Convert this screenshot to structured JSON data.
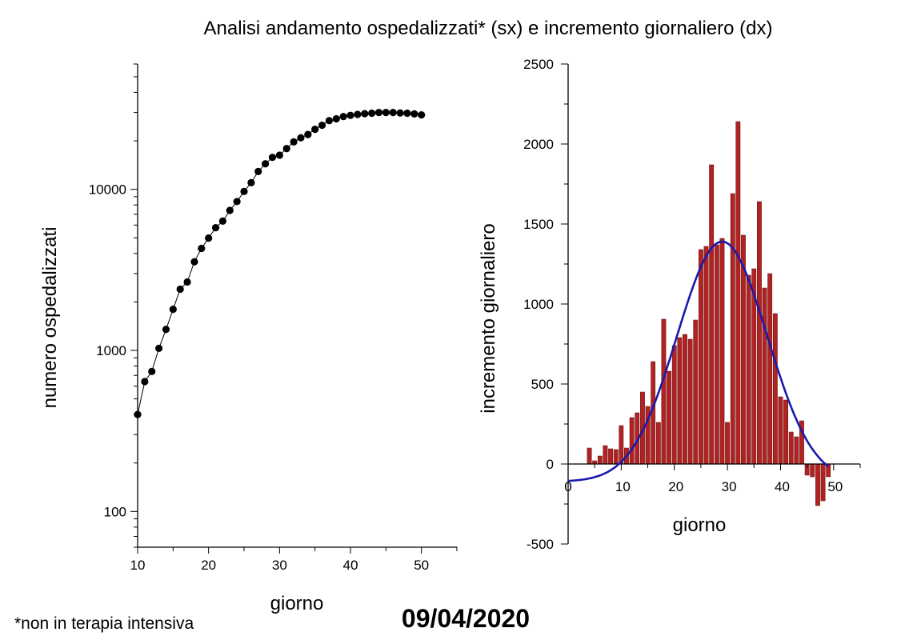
{
  "title": "Analisi andamento ospedalizzati* (sx) e incremento giornaliero (dx)",
  "footnote": "*non in terapia intensiva",
  "date": "09/04/2020",
  "colors": {
    "points": "#000000",
    "bars": "#b22222",
    "bar_outline": "#5a0d0d",
    "fit": "#1a1aaa"
  },
  "chart_data": [
    {
      "type": "scatter",
      "xlabel": "giorno",
      "ylabel": "numero ospedalizzati",
      "y_scale": "log",
      "xlim": [
        10,
        55
      ],
      "ylim": [
        60,
        60000
      ],
      "xticks": [
        10,
        20,
        30,
        40,
        50
      ],
      "xtick_labels": [
        "10",
        "20",
        "30",
        "40",
        "50"
      ],
      "yticks": [
        100,
        1000,
        10000
      ],
      "ytick_labels": [
        "100",
        "1000",
        "10000"
      ],
      "grid": false,
      "connected": true,
      "x": [
        10,
        11,
        12,
        13,
        14,
        15,
        16,
        17,
        18,
        19,
        20,
        21,
        22,
        23,
        24,
        25,
        26,
        27,
        28,
        29,
        30,
        31,
        32,
        33,
        34,
        35,
        36,
        37,
        38,
        39,
        40,
        41,
        42,
        43,
        44,
        45,
        46,
        47,
        48,
        49,
        50
      ],
      "y": [
        400,
        640,
        740,
        1030,
        1350,
        1800,
        2400,
        2660,
        3550,
        4300,
        4980,
        5780,
        6350,
        7400,
        8400,
        9700,
        11000,
        12900,
        14400,
        15800,
        16300,
        17900,
        19700,
        20900,
        21900,
        23600,
        25000,
        26700,
        27400,
        28300,
        28800,
        29200,
        29500,
        29700,
        30000,
        30000,
        30000,
        29800,
        29700,
        29400,
        29000
      ]
    },
    {
      "type": "bar",
      "xlabel": "giorno",
      "ylabel": "incremento giornaliero",
      "xlim": [
        0,
        55
      ],
      "ylim": [
        -500,
        2500
      ],
      "xticks": [
        0,
        10,
        20,
        30,
        40,
        50
      ],
      "xtick_labels": [
        "0",
        "10",
        "20",
        "30",
        "40",
        "50"
      ],
      "yticks": [
        -500,
        0,
        500,
        1000,
        1500,
        2000,
        2500
      ],
      "ytick_labels": [
        "-500",
        "0",
        "500",
        "1000",
        "1500",
        "2000",
        "2500"
      ],
      "grid": false,
      "x": [
        4,
        5,
        6,
        7,
        8,
        9,
        10,
        11,
        12,
        13,
        14,
        15,
        16,
        17,
        18,
        19,
        20,
        21,
        22,
        23,
        24,
        25,
        26,
        27,
        28,
        29,
        30,
        31,
        32,
        33,
        34,
        35,
        36,
        37,
        38,
        39,
        40,
        41,
        42,
        43,
        44,
        45,
        46,
        47,
        48,
        49
      ],
      "values": [
        100,
        20,
        50,
        115,
        95,
        90,
        240,
        100,
        290,
        320,
        450,
        360,
        640,
        260,
        905,
        580,
        740,
        790,
        810,
        780,
        900,
        1340,
        1360,
        1870,
        1370,
        1410,
        260,
        1690,
        2140,
        1430,
        1180,
        1220,
        1640,
        1100,
        1190,
        940,
        420,
        400,
        200,
        170,
        270,
        -70,
        -80,
        -260,
        -230,
        -80
      ],
      "fit_curve": {
        "type": "gaussian",
        "peak_x": 29,
        "peak_y": 1390,
        "sigma": 8.5,
        "offset": -110,
        "x_range": [
          0,
          49
        ]
      }
    }
  ]
}
